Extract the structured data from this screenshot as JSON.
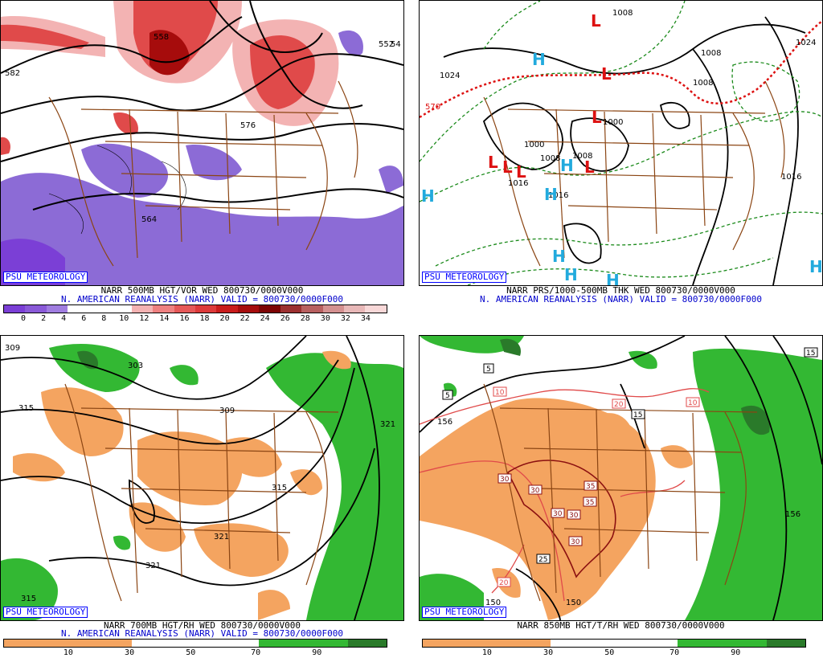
{
  "watermark": "PSU METEOROLOGY",
  "panels": {
    "p1": {
      "title": "NARR 500MB HGT/VOR WED 800730/0000V000",
      "subtitle": "N. AMERICAN REANALYSIS (NARR) VALID = 800730/0000F000",
      "colorbar_labels": [
        "0",
        "2",
        "4",
        "6",
        "8",
        "10",
        "12",
        "14",
        "16",
        "18",
        "20",
        "22",
        "24",
        "26",
        "28",
        "30",
        "32",
        "34"
      ],
      "colorbar_colors": [
        "#7b3fd6",
        "#8a5ad8",
        "#a07de0",
        "#ffffff",
        "#ffffff",
        "#ffffff",
        "#f4b2b2",
        "#ee8080",
        "#e55858",
        "#dd3a3a",
        "#c91c1c",
        "#a60c0c",
        "#7d0404",
        "#9c3030",
        "#b86060",
        "#d49090",
        "#e8b8b8",
        "#f8d8d8"
      ],
      "contour_labels": [
        "558",
        "582",
        "576",
        "552",
        "564",
        "54"
      ]
    },
    "p2": {
      "title": "NARR PRS/1000-500MB THK WED 800730/0000V000",
      "subtitle": "N. AMERICAN REANALYSIS (NARR) VALID = 800730/0000F000",
      "contour_labels": [
        "1024",
        "1024",
        "1008",
        "1008",
        "1008",
        "1000",
        "1000",
        "1008",
        "1016",
        "1016",
        "1016",
        "1008",
        "570"
      ],
      "high_symbol": "H",
      "low_symbol": "L"
    },
    "p3": {
      "title": "NARR 700MB HGT/RH WED 800730/0000V000",
      "subtitle": "N. AMERICAN REANALYSIS (NARR) VALID = 800730/0000F000",
      "colorbar_labels": [
        "10",
        "30",
        "50",
        "70",
        "90"
      ],
      "contour_labels": [
        "309",
        "303",
        "315",
        "309",
        "321",
        "315",
        "321",
        "321",
        "315"
      ]
    },
    "p4": {
      "title": "NARR 850MB HGT/T/RH WED 800730/0000V000",
      "subtitle": "",
      "colorbar_labels": [
        "10",
        "30",
        "50",
        "70",
        "90"
      ],
      "contour_labels": [
        "156",
        "156",
        "150",
        "150"
      ],
      "temp_boxes": [
        "5",
        "5",
        "15",
        "15",
        "10",
        "10",
        "20",
        "20",
        "25",
        "30",
        "30",
        "30",
        "30",
        "35",
        "35",
        "30"
      ]
    }
  },
  "colors": {
    "map_border": "#8b4513",
    "purple": "#8c6bd6",
    "red_dark": "#b01818",
    "red_mid": "#e04a4a",
    "red_light": "#f3b3b3",
    "orange": "#f4a460",
    "green": "#33b833",
    "green_dark": "#2a7a2a",
    "cyan": "#22aadd"
  }
}
